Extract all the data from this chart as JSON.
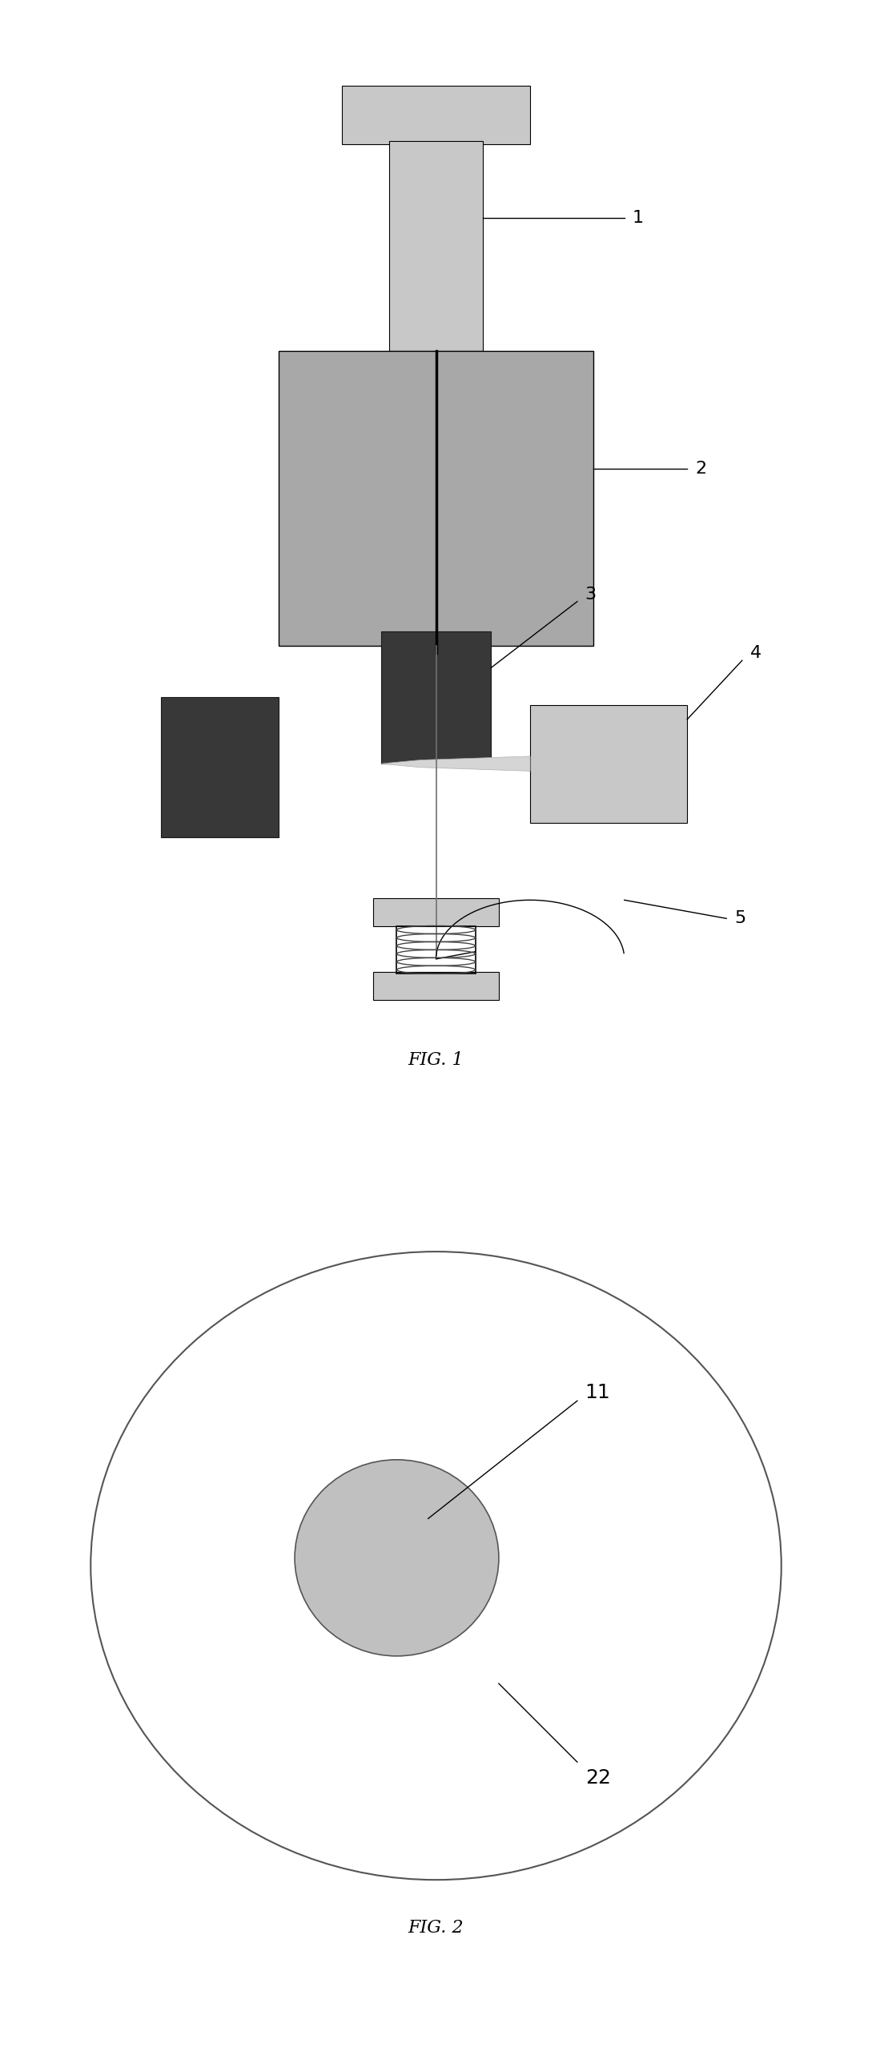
{
  "fig_width": 10.89,
  "fig_height": 25.76,
  "bg_color": "#ffffff",
  "fig1_label": "FIG. 1",
  "fig2_label": "FIG. 2",
  "label1": "1",
  "label2": "2",
  "label3": "3",
  "label4": "4",
  "label5": "5",
  "label11": "11",
  "label22": "22",
  "gray_light": "#c8c8c8",
  "gray_medium": "#a8a8a8",
  "gray_dark": "#383838",
  "gray_coil": "#686868",
  "line_color": "#000000",
  "font_size_label": 16,
  "font_size_fig": 16
}
